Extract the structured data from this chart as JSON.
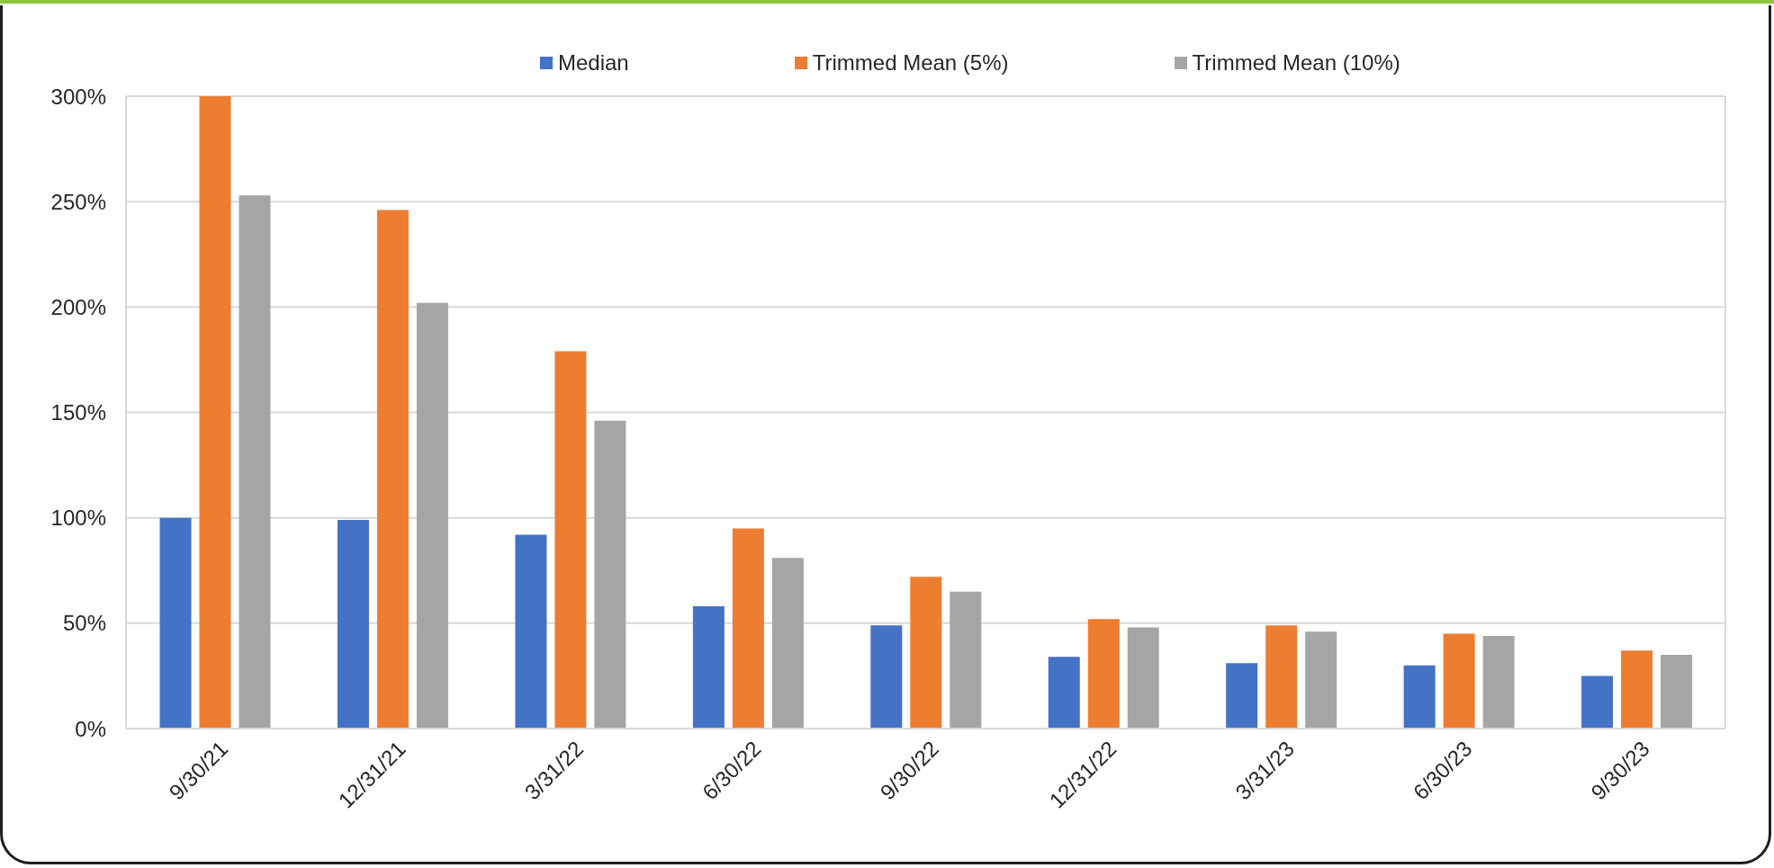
{
  "chart_data": {
    "type": "bar",
    "categories": [
      "9/30/21",
      "12/31/21",
      "3/31/22",
      "6/30/22",
      "9/30/22",
      "12/31/22",
      "3/31/23",
      "6/30/23",
      "9/30/23"
    ],
    "series": [
      {
        "name": "Median",
        "color": "#4472c4",
        "values": [
          100,
          99,
          92,
          58,
          49,
          34,
          31,
          30,
          25
        ]
      },
      {
        "name": "Trimmed Mean (5%)",
        "color": "#ed7d31",
        "values": [
          300,
          246,
          179,
          95,
          72,
          52,
          49,
          45,
          37
        ]
      },
      {
        "name": "Trimmed Mean (10%)",
        "color": "#a5a5a5",
        "values": [
          253,
          202,
          146,
          81,
          65,
          48,
          46,
          44,
          35
        ]
      }
    ],
    "ylim": [
      0,
      300
    ],
    "yticks": [
      {
        "value": 0,
        "label": "0%"
      },
      {
        "value": 50,
        "label": "50%"
      },
      {
        "value": 100,
        "label": "100%"
      },
      {
        "value": 150,
        "label": "150%"
      },
      {
        "value": 200,
        "label": "200%"
      },
      {
        "value": 250,
        "label": "250%"
      },
      {
        "value": 300,
        "label": "300%"
      }
    ],
    "grid": "y",
    "legend": "top"
  }
}
